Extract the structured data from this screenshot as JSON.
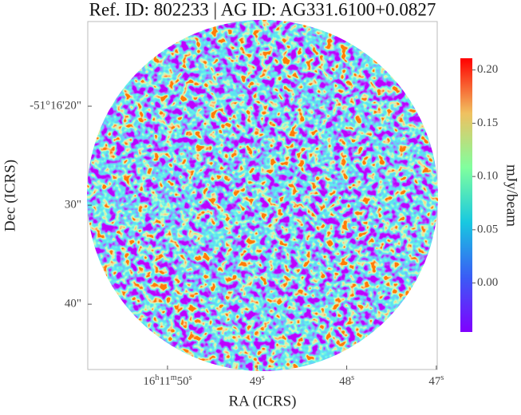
{
  "chart_data": {
    "type": "image",
    "title": "Ref. ID: 802233 | AG ID: AG331.6100+0.0827",
    "xlabel": "RA (ICRS)",
    "ylabel": "Dec (ICRS)",
    "xlim": [
      50.89,
      46.99
    ],
    "xticks": [
      {
        "value": 50,
        "label": "16h11m50s"
      },
      {
        "value": 49,
        "label": "49s"
      },
      {
        "value": 48,
        "label": "48s"
      },
      {
        "value": 47,
        "label": "47s"
      }
    ],
    "ylim": [
      46.6,
      11.45
    ],
    "yticks": [
      {
        "value": 20,
        "label": "-51°16'20\""
      },
      {
        "value": 30,
        "label": "30\""
      },
      {
        "value": 40,
        "label": "40\""
      }
    ],
    "colorbar": {
      "label": "mJy/beam",
      "lim": [
        -0.046,
        0.211
      ],
      "ticks": [
        {
          "value": 0,
          "label": "0.00"
        },
        {
          "value": 0.05,
          "label": "0.05"
        },
        {
          "value": 0.1,
          "label": "0.10"
        },
        0.15,
        {
          "value": 0.2,
          "label": "0.20"
        }
      ]
    }
  }
}
